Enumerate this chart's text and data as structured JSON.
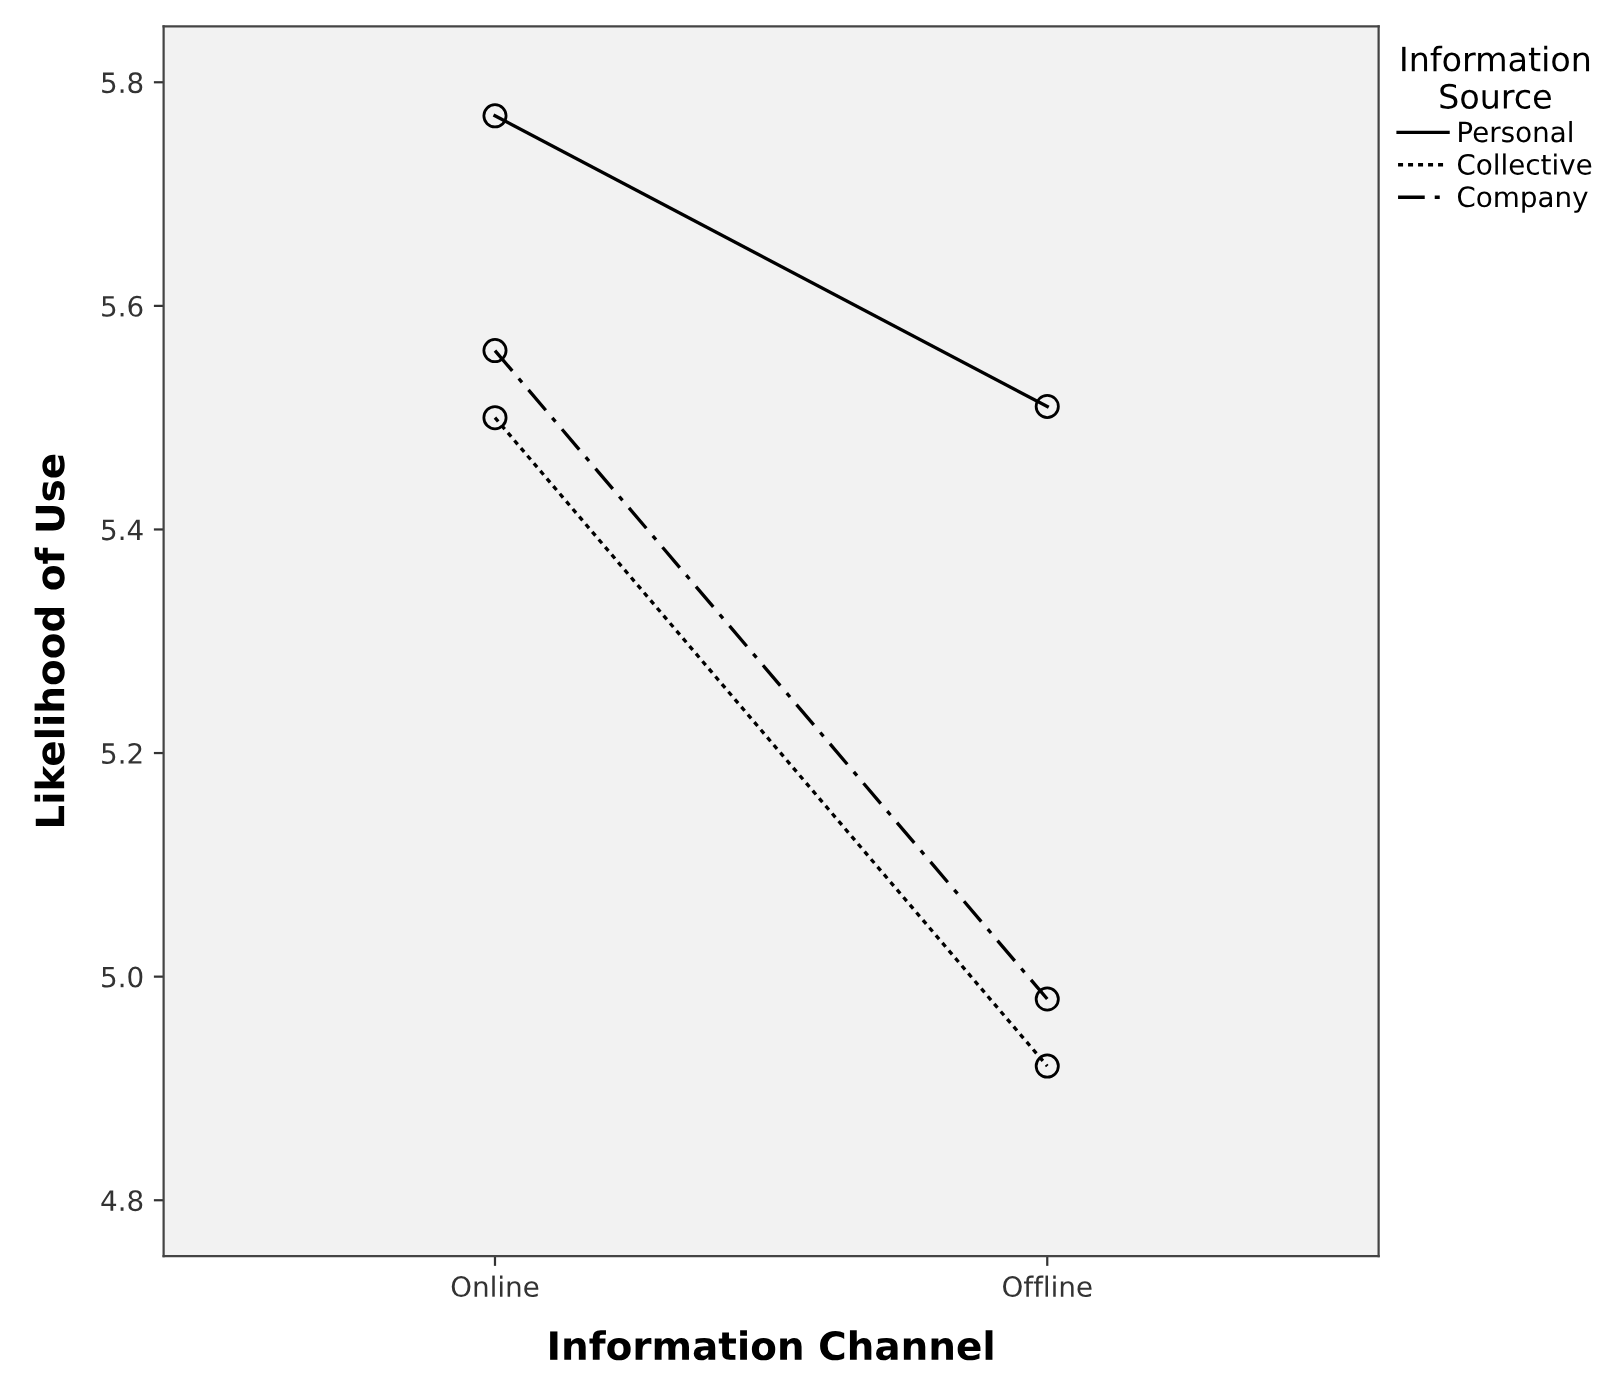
{
  "chart_data": {
    "type": "line",
    "xlabel": "Information Channel",
    "ylabel": "Likelihood of Use",
    "legend_title": "Information\nSource",
    "categories": [
      "Online",
      "Offline"
    ],
    "series": [
      {
        "name": "Personal",
        "color": "#000000",
        "values": [
          5.77,
          5.51
        ],
        "line_style": "solid"
      },
      {
        "name": "Collective",
        "color": "#000000",
        "values": [
          5.5,
          4.92
        ],
        "line_style": "dotted"
      },
      {
        "name": "Company",
        "color": "#000000",
        "values": [
          5.56,
          4.98
        ],
        "line_style": "dashdot"
      }
    ],
    "ylim": [
      4.75,
      5.85
    ],
    "yticks": [
      4.8,
      {
        "value": 5.0,
        "label": "5.0"
      },
      5.2,
      5.4,
      5.6,
      5.8
    ],
    "grid": false,
    "marker": "circle",
    "legend": "top right"
  }
}
